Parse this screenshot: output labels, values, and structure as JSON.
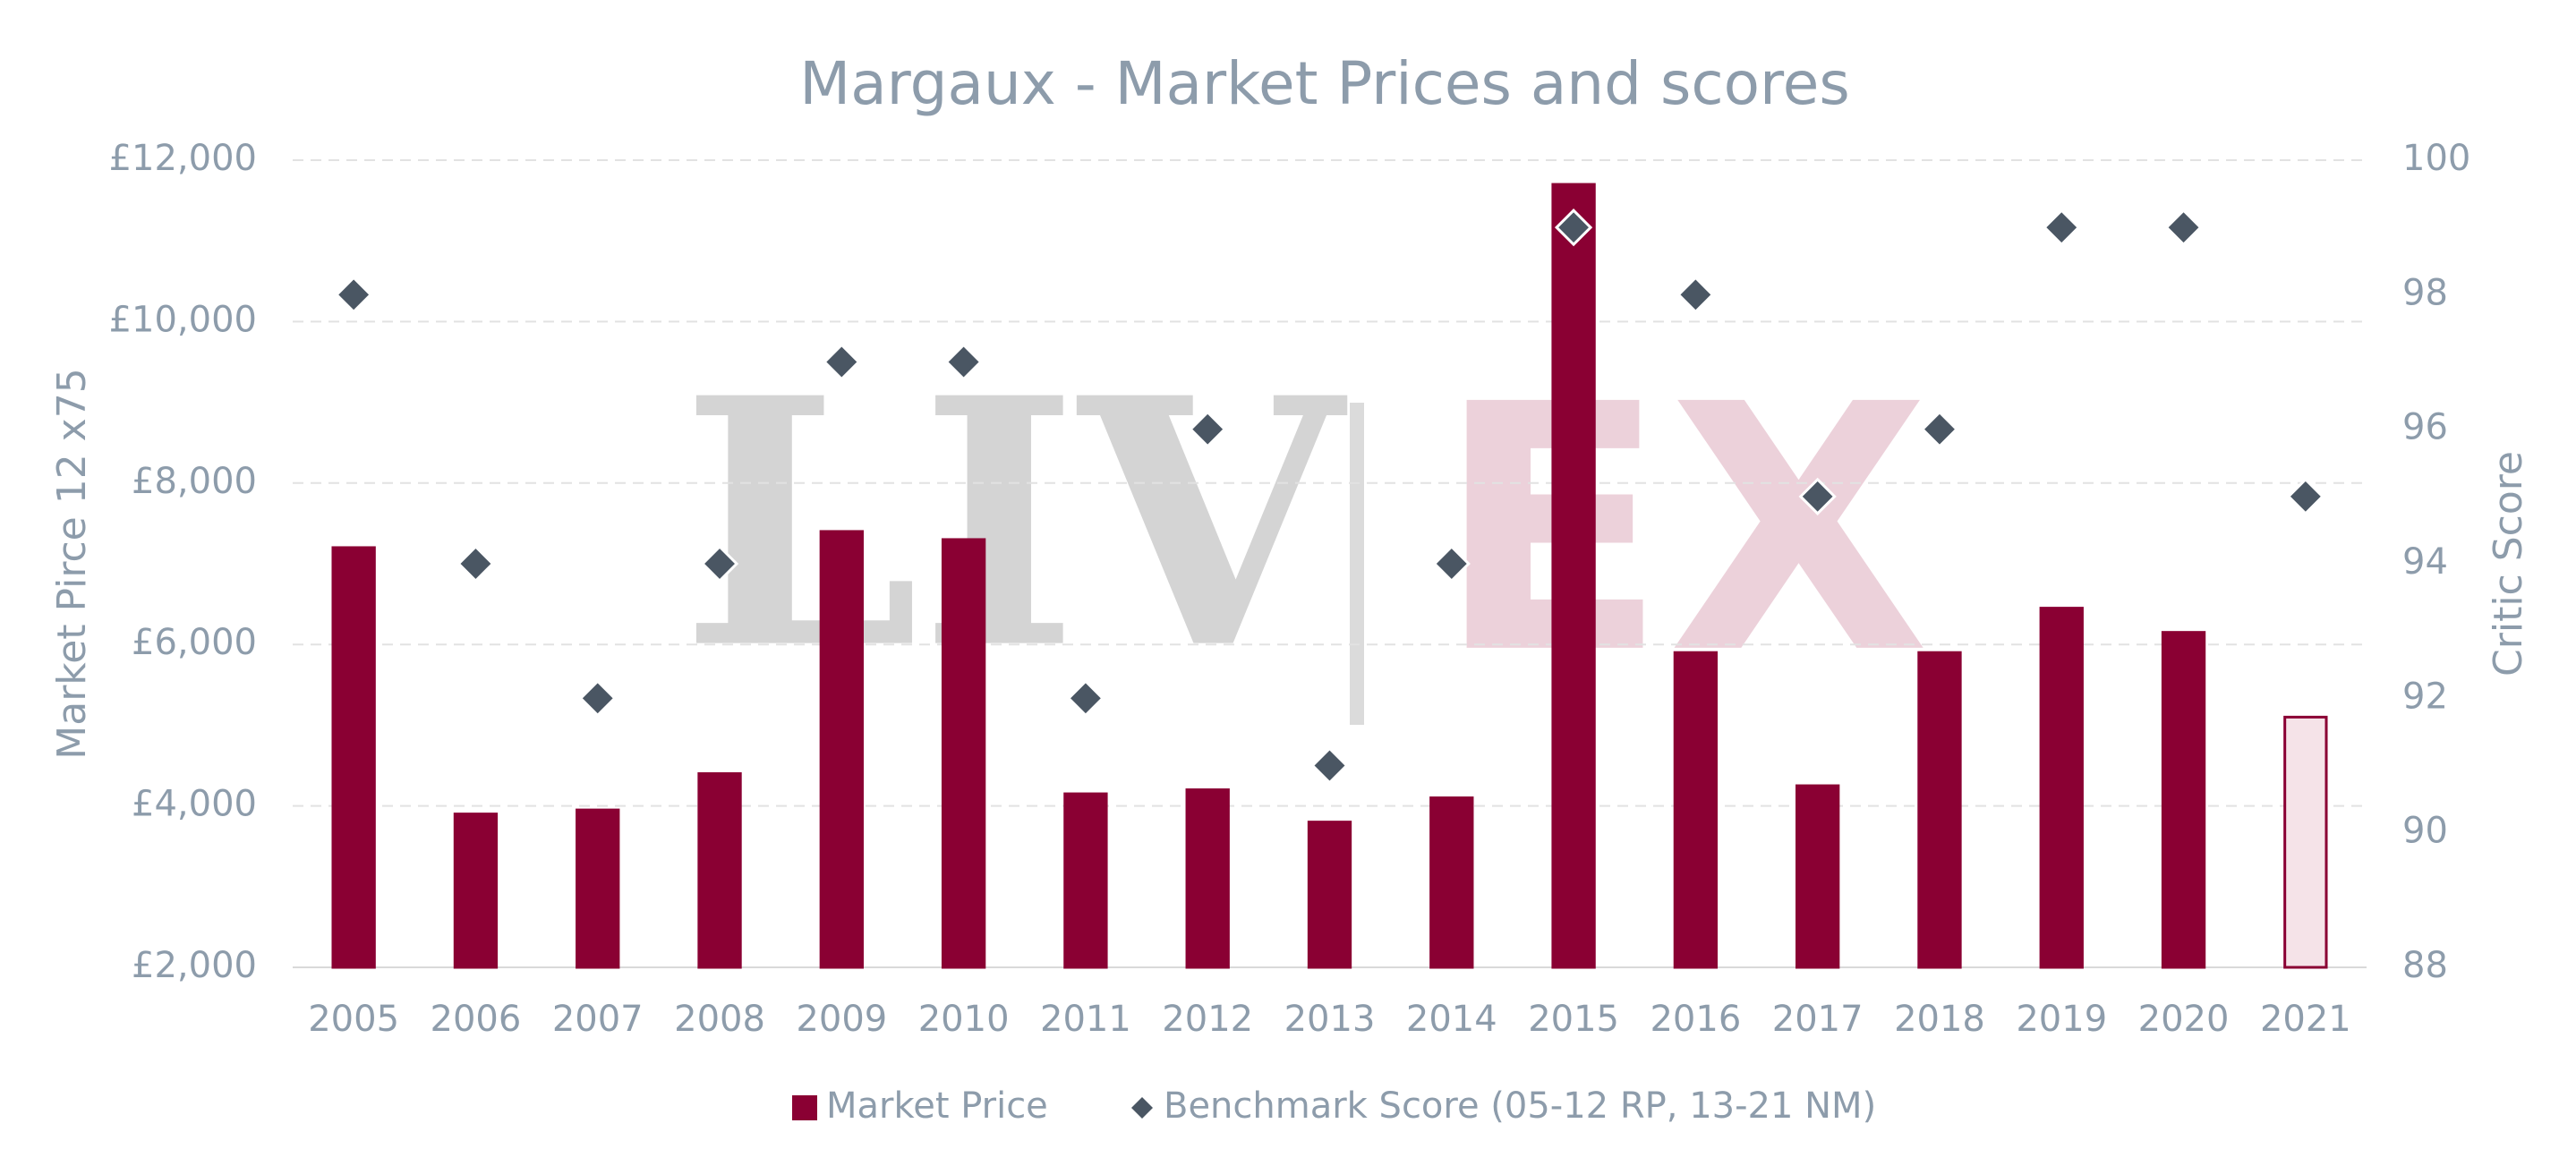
{
  "chart_data": {
    "type": "bar",
    "title": "Margaux - Market Prices and scores",
    "watermark": [
      "LIV",
      "EX"
    ],
    "categories": [
      "2005",
      "2006",
      "2007",
      "2008",
      "2009",
      "2010",
      "2011",
      "2012",
      "2013",
      "2014",
      "2015",
      "2016",
      "2017",
      "2018",
      "2019",
      "2020",
      "2021"
    ],
    "series": [
      {
        "name": "Market Price",
        "type": "bar",
        "color": "#8a0033",
        "edgecolor": "#8a0033",
        "colors": [
          "#8a0033",
          "#8a0033",
          "#8a0033",
          "#8a0033",
          "#8a0033",
          "#8a0033",
          "#8a0033",
          "#8a0033",
          "#8a0033",
          "#8a0033",
          "#8a0033",
          "#8a0033",
          "#8a0033",
          "#8a0033",
          "#8a0033",
          "#8a0033",
          "#f5e3e8"
        ],
        "values": [
          7200,
          3900,
          3950,
          4400,
          7400,
          7300,
          4150,
          4200,
          3800,
          4100,
          11700,
          5900,
          4250,
          5900,
          6450,
          6150,
          5100
        ]
      },
      {
        "name": "Benchmark Score (05-12 RP, 13-21 NM)",
        "type": "scatter",
        "axis": "y2",
        "color": "#4a5663",
        "values": [
          98,
          94,
          92,
          94,
          97,
          97,
          92,
          96,
          91,
          94,
          99,
          98,
          95,
          96,
          99,
          99,
          95
        ]
      }
    ],
    "ylabel": "Market Pirce 12 x75",
    "y2label": "Critic Score",
    "ylim": [
      2000,
      12000
    ],
    "yticks": [
      {
        "value": 2000,
        "label": "£2,000"
      },
      {
        "value": 4000,
        "label": "£4,000"
      },
      {
        "value": 6000,
        "label": "£6,000"
      },
      {
        "value": 8000,
        "label": "£8,000"
      },
      {
        "value": 10000,
        "label": "£10,000"
      },
      {
        "value": 12000,
        "label": "£12,000"
      }
    ],
    "y2lim": [
      88,
      100
    ],
    "y2ticks": [
      88,
      90,
      92,
      94,
      96,
      98,
      100
    ],
    "grid": true,
    "legend": "bottom"
  }
}
